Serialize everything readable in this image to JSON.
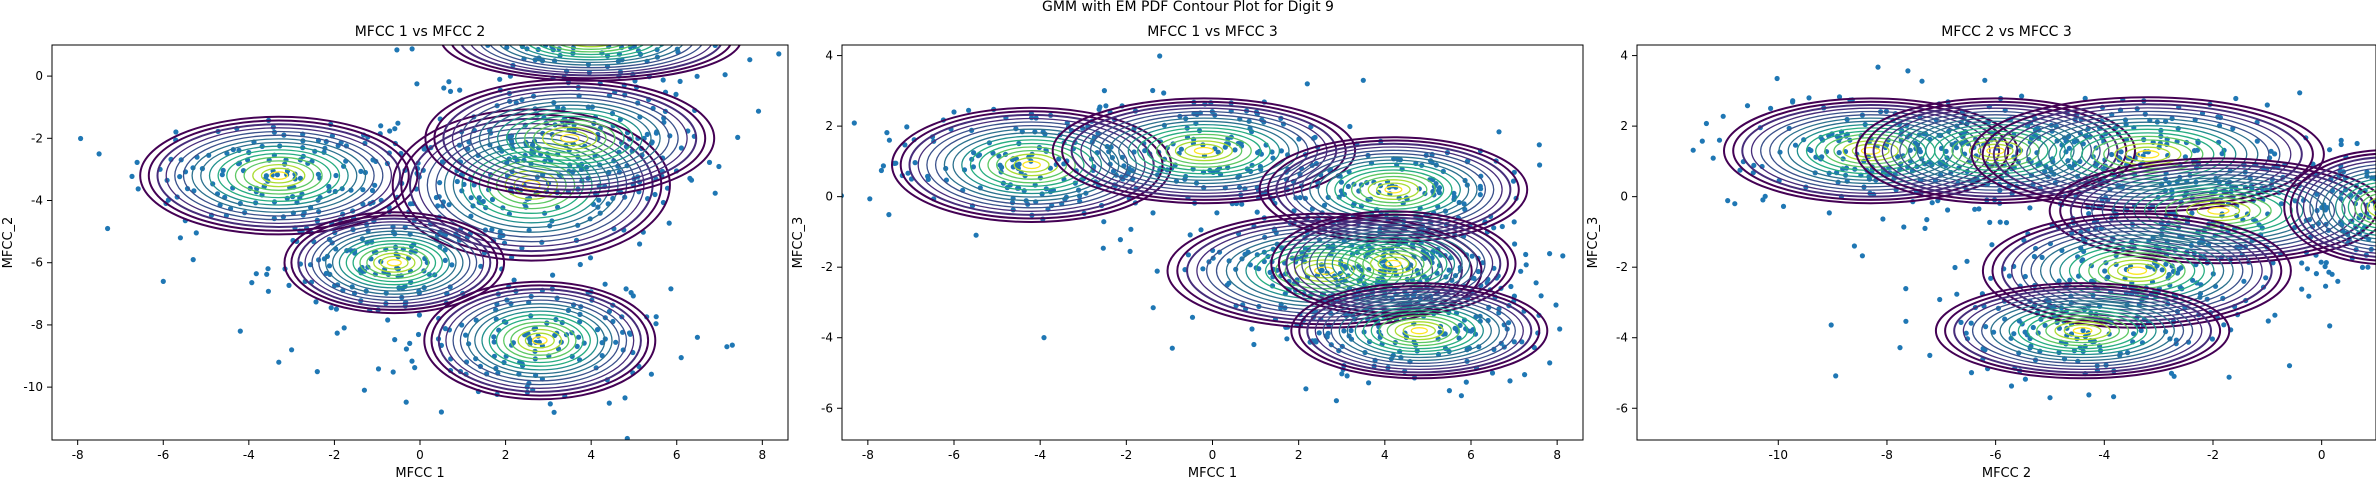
{
  "figure": {
    "suptitle": "GMM with EM PDF Contour Plot for Digit 9"
  },
  "colors": {
    "scatter": "#1f77b4",
    "contour_low": "#440154",
    "contour_high": "#fde725",
    "axes": "#000000"
  },
  "chart_data": [
    {
      "type": "scatter",
      "title": "MFCC 1 vs MFCC 2",
      "xlabel": "MFCC 1",
      "ylabel": "MFCC_2",
      "xlim": [
        -8.6,
        8.6
      ],
      "ylim": [
        -11.7,
        1.0
      ],
      "xticks": [
        -8,
        -6,
        -4,
        -2,
        0,
        2,
        4,
        6,
        8
      ],
      "yticks": [
        -10,
        -8,
        -6,
        -4,
        -2,
        0
      ],
      "grid": false,
      "overlay": "GMM PDF contours (viridis)",
      "components": [
        {
          "mean": [
            -3.3,
            -3.2
          ],
          "sd": [
            2.4,
            1.4
          ]
        },
        {
          "mean": [
            2.6,
            -3.5
          ],
          "sd": [
            2.4,
            1.8
          ]
        },
        {
          "mean": [
            3.5,
            -2.0
          ],
          "sd": [
            2.5,
            1.4
          ]
        },
        {
          "mean": [
            -0.6,
            -6.0
          ],
          "sd": [
            1.9,
            1.2
          ]
        },
        {
          "mean": [
            2.8,
            -8.5
          ],
          "sd": [
            2.0,
            1.4
          ]
        },
        {
          "mean": [
            4.0,
            1.2
          ],
          "sd": [
            2.6,
            1.0
          ]
        }
      ],
      "outliers": [
        [
          -7.5,
          -2.5
        ],
        [
          -7.3,
          -4.9
        ],
        [
          -6.0,
          -6.6
        ],
        [
          -5.3,
          -5.9
        ],
        [
          -3.3,
          -9.2
        ],
        [
          -2.4,
          -9.5
        ],
        [
          -1.3,
          -10.1
        ],
        [
          0.5,
          -10.8
        ],
        [
          -4.2,
          -8.2
        ],
        [
          -5.6,
          -5.2
        ],
        [
          -3.0,
          -8.8
        ]
      ]
    },
    {
      "type": "scatter",
      "title": "MFCC 1 vs MFCC 3",
      "xlabel": "MFCC 1",
      "ylabel": "MFCC_3",
      "xlim": [
        -8.6,
        8.6
      ],
      "ylim": [
        -6.9,
        4.3
      ],
      "xticks": [
        -8,
        -6,
        -4,
        -2,
        0,
        2,
        4,
        6,
        8
      ],
      "yticks": [
        -6,
        -4,
        -2,
        0,
        2,
        4
      ],
      "grid": false,
      "overlay": "GMM PDF contours (viridis)",
      "components": [
        {
          "mean": [
            -4.2,
            0.9
          ],
          "sd": [
            2.4,
            1.2
          ]
        },
        {
          "mean": [
            -0.2,
            1.3
          ],
          "sd": [
            2.6,
            1.1
          ]
        },
        {
          "mean": [
            4.2,
            0.2
          ],
          "sd": [
            2.3,
            1.1
          ]
        },
        {
          "mean": [
            2.6,
            -2.1
          ],
          "sd": [
            2.7,
            1.2
          ]
        },
        {
          "mean": [
            4.2,
            -1.9
          ],
          "sd": [
            2.1,
            1.1
          ]
        },
        {
          "mean": [
            4.8,
            -3.8
          ],
          "sd": [
            2.2,
            1.0
          ]
        }
      ],
      "outliers": [
        [
          -7.5,
          1.6
        ],
        [
          -7.2,
          0.6
        ],
        [
          -6.0,
          2.4
        ],
        [
          -3.5,
          -0.2
        ],
        [
          6.5,
          -5.0
        ],
        [
          5.5,
          -5.5
        ],
        [
          3.5,
          3.3
        ],
        [
          2.2,
          3.2
        ]
      ]
    },
    {
      "type": "scatter",
      "title": "MFCC 2 vs MFCC 3",
      "xlabel": "MFCC 2",
      "ylabel": "MFCC_3",
      "xlim": [
        -12.6,
        1.0
      ],
      "ylim": [
        -6.9,
        4.3
      ],
      "xticks": [
        -10,
        -8,
        -6,
        -4,
        -2,
        0
      ],
      "yticks": [
        -6,
        -4,
        -2,
        0,
        2,
        4
      ],
      "grid": false,
      "overlay": "GMM PDF contours (viridis)",
      "components": [
        {
          "mean": [
            -8.3,
            1.3
          ],
          "sd": [
            2.0,
            1.1
          ]
        },
        {
          "mean": [
            -6.0,
            1.3
          ],
          "sd": [
            1.9,
            1.1
          ]
        },
        {
          "mean": [
            -3.2,
            1.2
          ],
          "sd": [
            2.4,
            1.2
          ]
        },
        {
          "mean": [
            -1.9,
            -0.4
          ],
          "sd": [
            2.3,
            1.1
          ]
        },
        {
          "mean": [
            -3.4,
            -2.1
          ],
          "sd": [
            2.1,
            1.2
          ]
        },
        {
          "mean": [
            -4.4,
            -3.8
          ],
          "sd": [
            2.0,
            1.0
          ]
        },
        {
          "mean": [
            1.2,
            -0.3
          ],
          "sd": [
            1.4,
            1.2
          ]
        }
      ],
      "outliers": [
        [
          -10.8,
          -0.2
        ],
        [
          -8.6,
          -1.4
        ],
        [
          -7.3,
          -0.9
        ],
        [
          -1.0,
          2.6
        ],
        [
          -6.2,
          3.3
        ],
        [
          -5.0,
          -5.7
        ]
      ]
    }
  ]
}
